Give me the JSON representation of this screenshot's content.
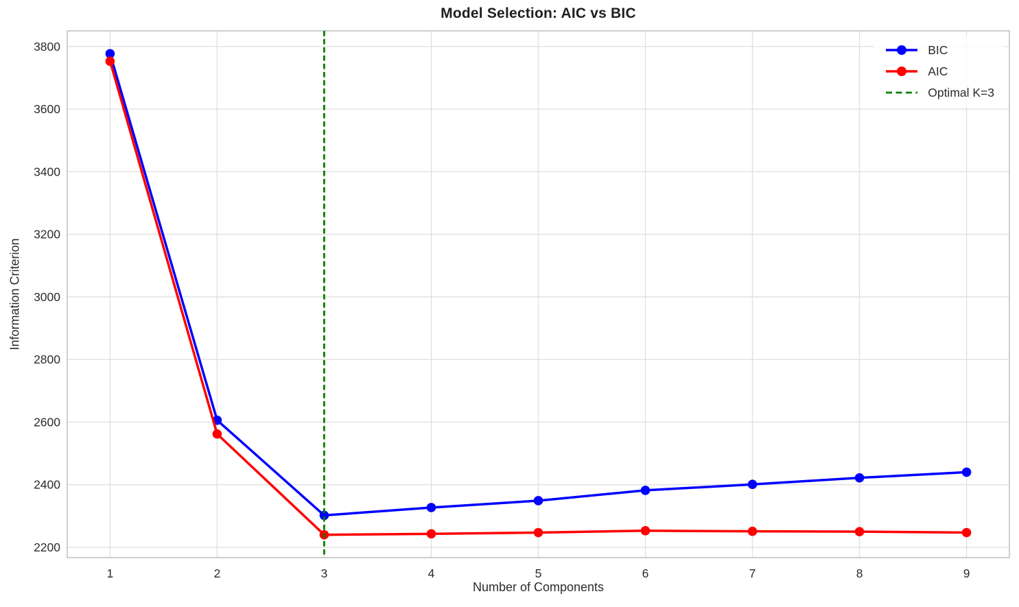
{
  "chart_data": {
    "type": "line",
    "title": "Model Selection: AIC vs BIC",
    "xlabel": "Number of Components",
    "ylabel": "Information Criterion",
    "x": [
      1,
      2,
      3,
      4,
      5,
      6,
      7,
      8,
      9
    ],
    "series": [
      {
        "name": "BIC",
        "color": "#0000ff",
        "values": [
          3777,
          2606,
          2302,
          2327,
          2349,
          2382,
          2401,
          2422,
          2440
        ]
      },
      {
        "name": "AIC",
        "color": "#ff0000",
        "values": [
          3753,
          2562,
          2240,
          2243,
          2247,
          2253,
          2251,
          2250,
          2247
        ]
      }
    ],
    "vline": {
      "x": 3,
      "label": "Optimal K=3",
      "color": "#008000",
      "style": "dashed"
    },
    "xlim": [
      0.6,
      9.4
    ],
    "ylim": [
      2167,
      3850
    ],
    "xticks": [
      1,
      2,
      3,
      4,
      5,
      6,
      7,
      8,
      9
    ],
    "yticks": [
      2200,
      2400,
      2600,
      2800,
      3000,
      3200,
      3400,
      3600,
      3800
    ],
    "grid": true,
    "grid_color": "#e0e0e0",
    "border_color": "#c9c9c9",
    "tick_label_color": "#2b2b2b",
    "legend_position": "upper right"
  }
}
